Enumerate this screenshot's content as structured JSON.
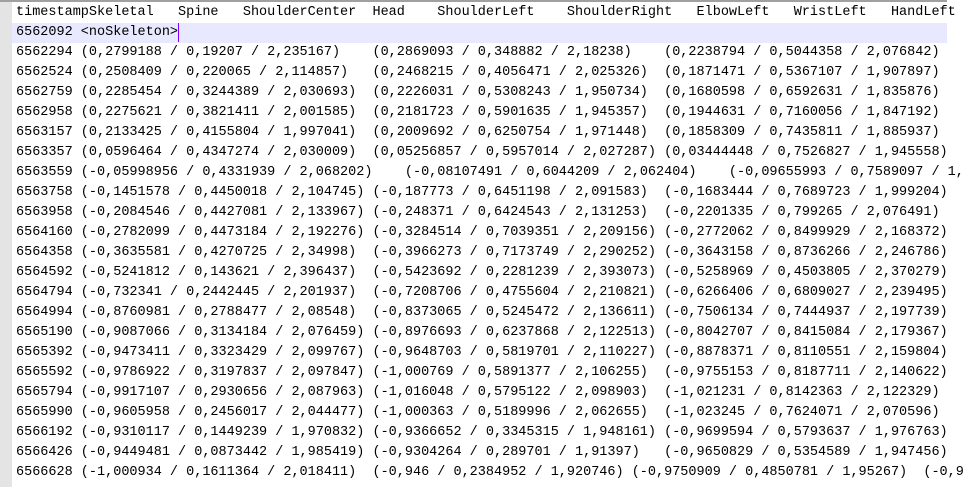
{
  "editor": {
    "current_line_color": "#e8e8ff",
    "header": [
      "timestampSkeletal",
      "Spine",
      "ShoulderCenter",
      "Head",
      "ShoulderLeft",
      "ShoulderRight",
      "ElbowLeft",
      "WristLeft",
      "HandLeft"
    ],
    "current_line": [
      "6562092 <noSkeleton>"
    ],
    "rows": [
      [
        "6562294 (0,2799188 / 0,19207 / 2,235167)",
        "(0,2869093 / 0,348882 / 2,18238)",
        "(0,2238794 / 0,5044358 / 2,076842)"
      ],
      [
        "6562524 (0,2508409 / 0,220065 / 2,114857)",
        "(0,2468215 / 0,4056471 / 2,025326)",
        "(0,1871471 / 0,5367107 / 1,907897)"
      ],
      [
        "6562759 (0,2285454 / 0,3244389 / 2,030693)",
        "(0,2226031 / 0,5308243 / 1,950734)",
        "(0,1680598 / 0,6592631 / 1,835876)"
      ],
      [
        "6562958 (0,2275621 / 0,3821411 / 2,001585)",
        "(0,2181723 / 0,5901635 / 1,945357)",
        "(0,1944631 / 0,7160056 / 1,847192)"
      ],
      [
        "6563157 (0,2133425 / 0,4155804 / 1,997041)",
        "(0,2009692 / 0,6250754 / 1,971448)",
        "(0,1858309 / 0,7435811 / 1,885937)"
      ],
      [
        "6563357 (0,0596464 / 0,4347274 / 2,030009)",
        "(0,05256857 / 0,5957014 / 2,027287)",
        "(0,03444448 / 0,7526827 / 1,945558)"
      ],
      [
        "6563559 (-0,05998956 / 0,4331939 / 2,068202)",
        "(-0,08107491 / 0,6044209 / 2,062404)",
        "(-0,09655993 / 0,7589097 / 1,"
      ],
      [
        "6563758 (-0,1451578 / 0,4450018 / 2,104745)",
        "(-0,187773 / 0,6451198 / 2,091583)",
        "(-0,1683444 / 0,7689723 / 1,999204)"
      ],
      [
        "6563958 (-0,2084546 / 0,4427081 / 2,133967)",
        "(-0,248371 / 0,6424543 / 2,131253)",
        "(-0,2201335 / 0,799265 / 2,076491)"
      ],
      [
        "6564160 (-0,2782099 / 0,4473184 / 2,192276)",
        "(-0,3284514 / 0,7039351 / 2,209156)",
        "(-0,2772062 / 0,8499929 / 2,168372)"
      ],
      [
        "6564358 (-0,3635581 / 0,4270725 / 2,34998)",
        "(-0,3966273 / 0,7173749 / 2,290252)",
        "(-0,3643158 / 0,8736266 / 2,246786)"
      ],
      [
        "6564592 (-0,5241812 / 0,143621 / 2,396437)",
        "(-0,5423692 / 0,2281239 / 2,393073)",
        "(-0,5258969 / 0,4503805 / 2,370279)"
      ],
      [
        "6564794 (-0,732341 / 0,2442445 / 2,201937)",
        "(-0,7208706 / 0,4755604 / 2,210821)",
        "(-0,6266406 / 0,6809027 / 2,239495)"
      ],
      [
        "6564994 (-0,8760981 / 0,2788477 / 2,08548)",
        "(-0,8373065 / 0,5245472 / 2,136611)",
        "(-0,7506134 / 0,7444937 / 2,197739)"
      ],
      [
        "6565190 (-0,9087066 / 0,3134184 / 2,076459)",
        "(-0,8976693 / 0,6237868 / 2,122513)",
        "(-0,8042707 / 0,8415084 / 2,179367)"
      ],
      [
        "6565392 (-0,9473411 / 0,3323429 / 2,099767)",
        "(-0,9648703 / 0,5819701 / 2,110227)",
        "(-0,8878371 / 0,8110551 / 2,159804)"
      ],
      [
        "6565592 (-0,9786922 / 0,3197837 / 2,097847)",
        "(-1,000769 / 0,5891377 / 2,106255)",
        "(-0,9755153 / 0,8187711 / 2,140622)"
      ],
      [
        "6565794 (-0,9917107 / 0,2930656 / 2,087963)",
        "(-1,016048 / 0,5795122 / 2,098903)",
        "(-1,021231 / 0,8142363 / 2,122329)"
      ],
      [
        "6565990 (-0,9605958 / 0,2456017 / 2,044477)",
        "(-1,000363 / 0,5189996 / 2,062655)",
        "(-1,023245 / 0,7624071 / 2,070596)"
      ],
      [
        "6566192 (-0,9310117 / 0,1449239 / 1,970832)",
        "(-0,9366652 / 0,3345315 / 1,948161)",
        "(-0,9699594 / 0,5793637 / 1,976763)"
      ],
      [
        "6566426 (-0,9449481 / 0,0873442 / 1,985419)",
        "(-0,9304264 / 0,289701 / 1,91397)",
        "(-0,9650829 / 0,5354589 / 1,947456)"
      ],
      [
        "6566628 (-1,000934 / 0,1611364 / 2,018411)",
        "(-0,946 / 0,2384952 / 1,920746)",
        "(-0,9750909 / 0,4850781 / 1,95267)",
        "(-0,9"
      ]
    ]
  }
}
